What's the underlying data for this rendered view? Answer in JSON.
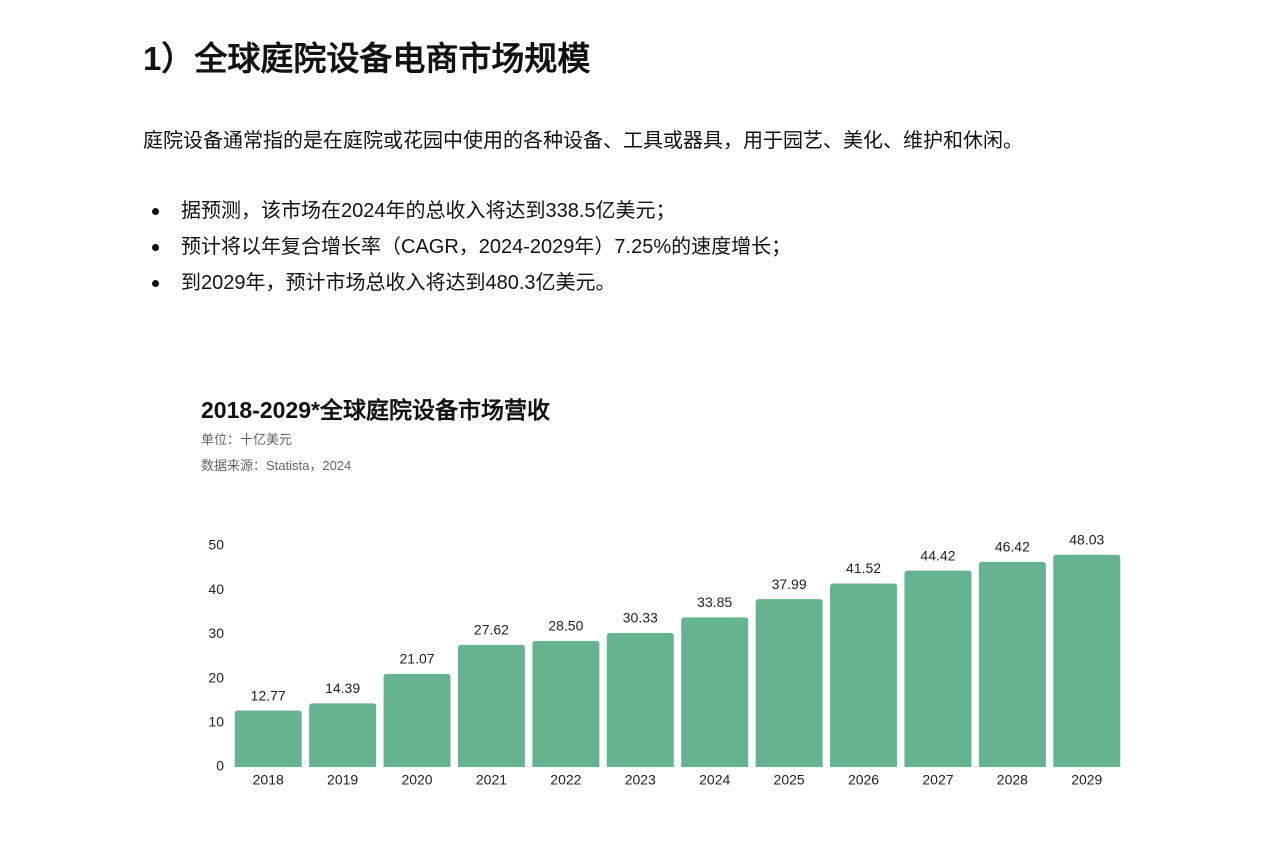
{
  "heading": "1）全球庭院设备电商市场规模",
  "intro": "庭院设备通常指的是在庭院或花园中使用的各种设备、工具或器具，用于园艺、美化、维护和休闲。",
  "bullets": [
    "据预测，该市场在2024年的总收入将达到338.5亿美元；",
    "预计将以年复合增长率（CAGR，2024-2029年）7.25%的速度增长；",
    "到2029年，预计市场总收入将达到480.3亿美元。"
  ],
  "chart_data": {
    "type": "bar",
    "title": "2018-2029*全球庭院设备市场营收",
    "subtitle": "单位：十亿美元",
    "source": "数据来源：Statista，2024",
    "categories": [
      "2018",
      "2019",
      "2020",
      "2021",
      "2022",
      "2023",
      "2024",
      "2025",
      "2026",
      "2027",
      "2028",
      "2029"
    ],
    "values": [
      12.77,
      14.39,
      21.07,
      27.62,
      28.5,
      30.33,
      33.85,
      37.99,
      41.52,
      44.42,
      46.42,
      48.03
    ],
    "value_labels": [
      "12.77",
      "14.39",
      "21.07",
      "27.62",
      "28.50",
      "30.33",
      "33.85",
      "37.99",
      "41.52",
      "44.42",
      "46.42",
      "48.03"
    ],
    "color": "#66b38f",
    "ylim": [
      0,
      50
    ],
    "yticks": [
      0,
      10,
      20,
      30,
      40,
      50
    ],
    "grid": false
  }
}
